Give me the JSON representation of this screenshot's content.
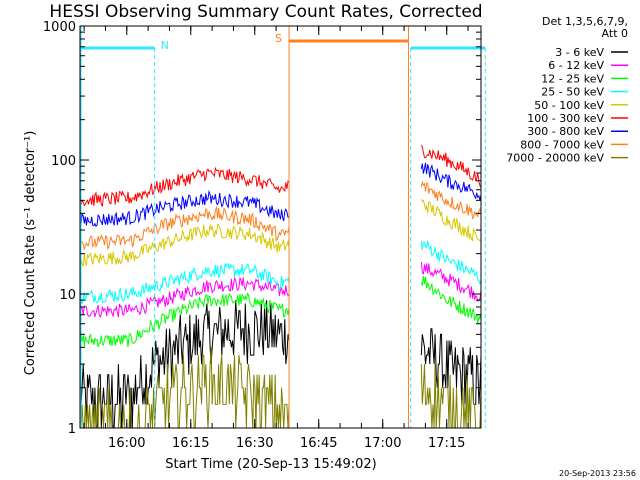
{
  "chart_data": {
    "type": "line",
    "title": "HESSI Observing Summary Count Rates, Corrected",
    "xlabel": "Start Time (20-Sep-13 15:49:02)",
    "ylabel": "Corrected Count Rate (s⁻¹ detector⁻¹)",
    "yscale": "log",
    "ylim": [
      1,
      1000
    ],
    "xlim_minutes_after_start": [
      0,
      94
    ],
    "x_ticks": [
      "16:00",
      "16:15",
      "16:30",
      "16:45",
      "17:00",
      "17:15"
    ],
    "y_ticks": [
      "1",
      "10",
      "100",
      "1000"
    ],
    "legend_header": [
      "Det 1,3,5,6,7,9,",
      "Att 0"
    ],
    "legend_position": "right",
    "timestamp": "20-Sep-2013 23:56",
    "flags": [
      {
        "label": "N",
        "color": "#33e5ff",
        "intervals": [
          [
            0,
            17.5
          ],
          [
            77.5,
            95
          ]
        ]
      },
      {
        "label": "S",
        "color": "#ff7f1f",
        "intervals": [
          [
            49,
            77
          ]
        ]
      }
    ],
    "gap_minutes": [
      49,
      79
    ],
    "series": [
      {
        "name": "3 - 6 keV",
        "color": "#000000",
        "approx_values": [
          [
            0,
            1.6
          ],
          [
            12,
            1.7
          ],
          [
            18,
            3.0
          ],
          [
            30,
            5.0
          ],
          [
            40,
            5.5
          ],
          [
            47,
            5.0
          ],
          [
            80,
            4.0
          ],
          [
            86,
            2.8
          ],
          [
            94,
            2.2
          ]
        ]
      },
      {
        "name": "6 - 12 keV",
        "color": "#ff00ff",
        "approx_values": [
          [
            0,
            7.5
          ],
          [
            12,
            7.5
          ],
          [
            20,
            9.0
          ],
          [
            30,
            11.5
          ],
          [
            40,
            12.0
          ],
          [
            47,
            10.5
          ],
          [
            80,
            16.0
          ],
          [
            86,
            13.0
          ],
          [
            94,
            9.5
          ]
        ]
      },
      {
        "name": "12 - 25 keV",
        "color": "#00ff00",
        "approx_values": [
          [
            0,
            4.5
          ],
          [
            12,
            4.5
          ],
          [
            20,
            6.5
          ],
          [
            30,
            9.0
          ],
          [
            40,
            9.0
          ],
          [
            47,
            7.5
          ],
          [
            80,
            13.0
          ],
          [
            86,
            9.0
          ],
          [
            94,
            6.5
          ]
        ]
      },
      {
        "name": "25 - 50 keV",
        "color": "#00ffff",
        "approx_values": [
          [
            0,
            9.5
          ],
          [
            12,
            10.0
          ],
          [
            20,
            12.0
          ],
          [
            30,
            15.0
          ],
          [
            40,
            15.0
          ],
          [
            47,
            12.0
          ],
          [
            80,
            24.0
          ],
          [
            86,
            18.0
          ],
          [
            94,
            13.0
          ]
        ]
      },
      {
        "name": "50 - 100 keV",
        "color": "#d8c800",
        "approx_values": [
          [
            0,
            18.0
          ],
          [
            12,
            19.0
          ],
          [
            20,
            24.0
          ],
          [
            30,
            30.0
          ],
          [
            40,
            28.0
          ],
          [
            47,
            22.0
          ],
          [
            80,
            48.0
          ],
          [
            86,
            36.0
          ],
          [
            94,
            25.0
          ]
        ]
      },
      {
        "name": "100 - 300 keV",
        "color": "#ff0000",
        "approx_values": [
          [
            0,
            50.0
          ],
          [
            12,
            52.0
          ],
          [
            20,
            65.0
          ],
          [
            30,
            80.0
          ],
          [
            40,
            72.0
          ],
          [
            47,
            60.0
          ],
          [
            80,
            120.0
          ],
          [
            86,
            100.0
          ],
          [
            94,
            70.0
          ]
        ]
      },
      {
        "name": "300 - 800 keV",
        "color": "#0000ff",
        "approx_values": [
          [
            0,
            35.0
          ],
          [
            12,
            37.0
          ],
          [
            20,
            45.0
          ],
          [
            30,
            52.0
          ],
          [
            40,
            48.0
          ],
          [
            47,
            38.0
          ],
          [
            80,
            90.0
          ],
          [
            86,
            70.0
          ],
          [
            94,
            55.0
          ]
        ]
      },
      {
        "name": "800 - 7000 keV",
        "color": "#ff7f1f",
        "approx_values": [
          [
            0,
            24.0
          ],
          [
            12,
            25.0
          ],
          [
            20,
            33.0
          ],
          [
            30,
            40.0
          ],
          [
            40,
            36.0
          ],
          [
            47,
            27.0
          ],
          [
            80,
            65.0
          ],
          [
            86,
            50.0
          ],
          [
            94,
            38.0
          ]
        ]
      },
      {
        "name": "7000 - 20000 keV",
        "color": "#808000",
        "approx_values": [
          [
            0,
            1.0
          ],
          [
            15,
            1.0
          ],
          [
            18,
            1.5
          ],
          [
            30,
            2.2
          ],
          [
            40,
            1.8
          ],
          [
            47,
            1.2
          ],
          [
            80,
            2.0
          ],
          [
            86,
            1.5
          ],
          [
            94,
            1.2
          ]
        ]
      }
    ]
  }
}
